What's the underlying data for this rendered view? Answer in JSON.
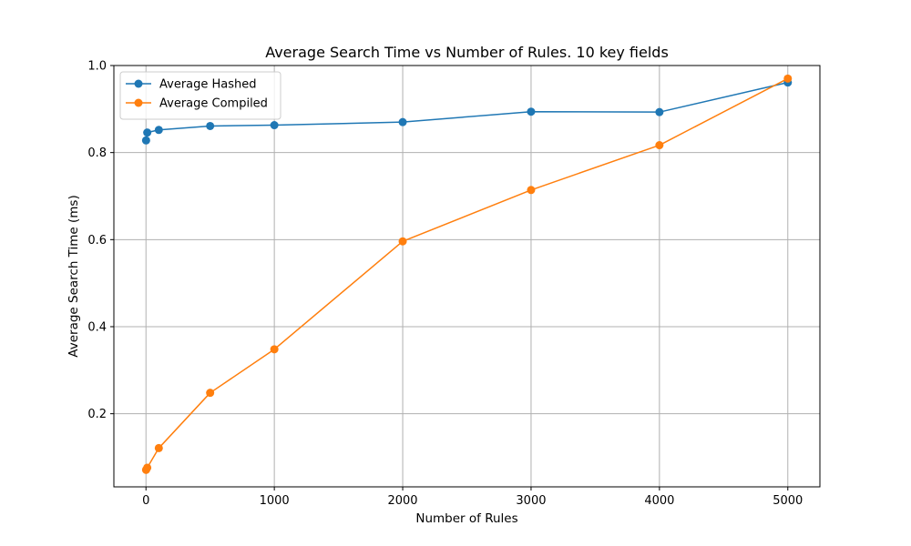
{
  "chart_data": {
    "type": "line",
    "title": "Average Search Time vs Number of Rules. 10 key fields",
    "xlabel": "Number of Rules",
    "ylabel": "Average Search Time (ms)",
    "xlim": [
      -250,
      5250
    ],
    "ylim": [
      0.032,
      1.0
    ],
    "xticks": [
      0,
      1000,
      2000,
      3000,
      4000,
      5000
    ],
    "xtick_labels": [
      "0",
      "1000",
      "2000",
      "3000",
      "4000",
      "5000"
    ],
    "yticks": [
      0.2,
      0.4,
      0.6,
      0.8,
      1.0
    ],
    "ytick_labels": [
      "0.2",
      "0.4",
      "0.6",
      "0.8",
      "1.0"
    ],
    "grid": true,
    "legend_position": "top-left",
    "series": [
      {
        "name": "Average Hashed",
        "color": "#1f77b4",
        "x": [
          1,
          10,
          100,
          500,
          1000,
          2000,
          3000,
          4000,
          5000
        ],
        "y": [
          0.828,
          0.846,
          0.852,
          0.861,
          0.863,
          0.87,
          0.894,
          0.893,
          0.961
        ]
      },
      {
        "name": "Average Compiled",
        "color": "#ff7f0e",
        "x": [
          1,
          10,
          100,
          500,
          1000,
          2000,
          3000,
          4000,
          5000
        ],
        "y": [
          0.071,
          0.076,
          0.121,
          0.248,
          0.348,
          0.596,
          0.714,
          0.817,
          0.97
        ]
      }
    ]
  }
}
